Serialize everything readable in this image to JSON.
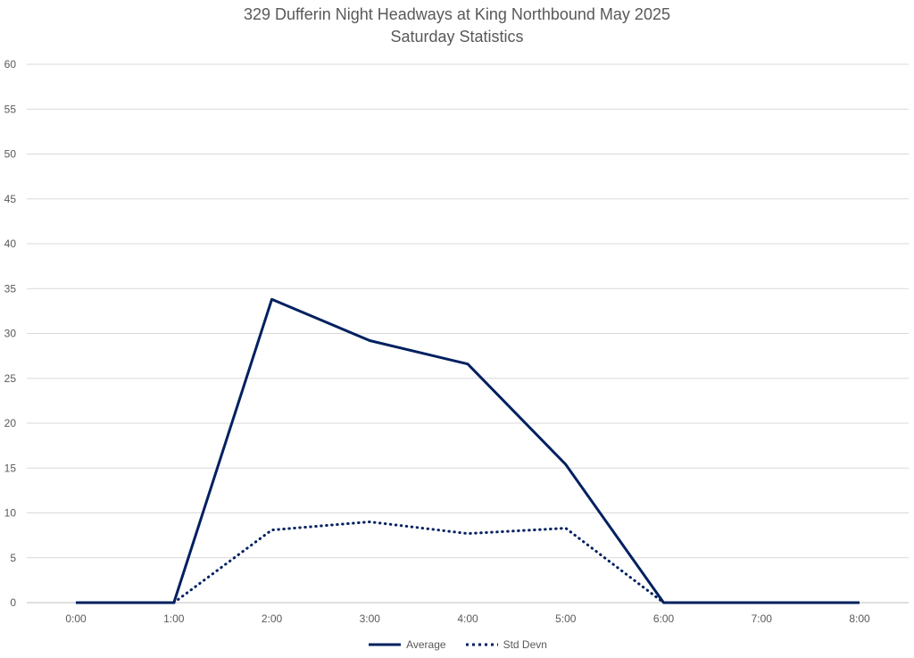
{
  "chart_data": {
    "type": "line",
    "title": "329 Dufferin Night Headways at King Northbound May 2025",
    "subtitle": "Saturday Statistics",
    "x": [
      "0:00",
      "1:00",
      "2:00",
      "3:00",
      "4:00",
      "5:00",
      "6:00",
      "7:00",
      "8:00"
    ],
    "series": [
      {
        "name": "Average",
        "values": [
          0,
          0,
          33.8,
          29.2,
          26.6,
          15.4,
          0,
          0,
          0
        ],
        "color": "#002060",
        "style": "solid"
      },
      {
        "name": "Std Devn",
        "values": [
          null,
          0,
          8.1,
          9.0,
          7.7,
          8.3,
          0,
          null,
          null
        ],
        "color": "#002060",
        "style": "dotted"
      }
    ],
    "ylim": [
      0,
      60
    ],
    "yticks": [
      0,
      5,
      10,
      15,
      20,
      25,
      30,
      35,
      40,
      45,
      50,
      55,
      60
    ],
    "grid": true,
    "legend_position": "bottom"
  }
}
